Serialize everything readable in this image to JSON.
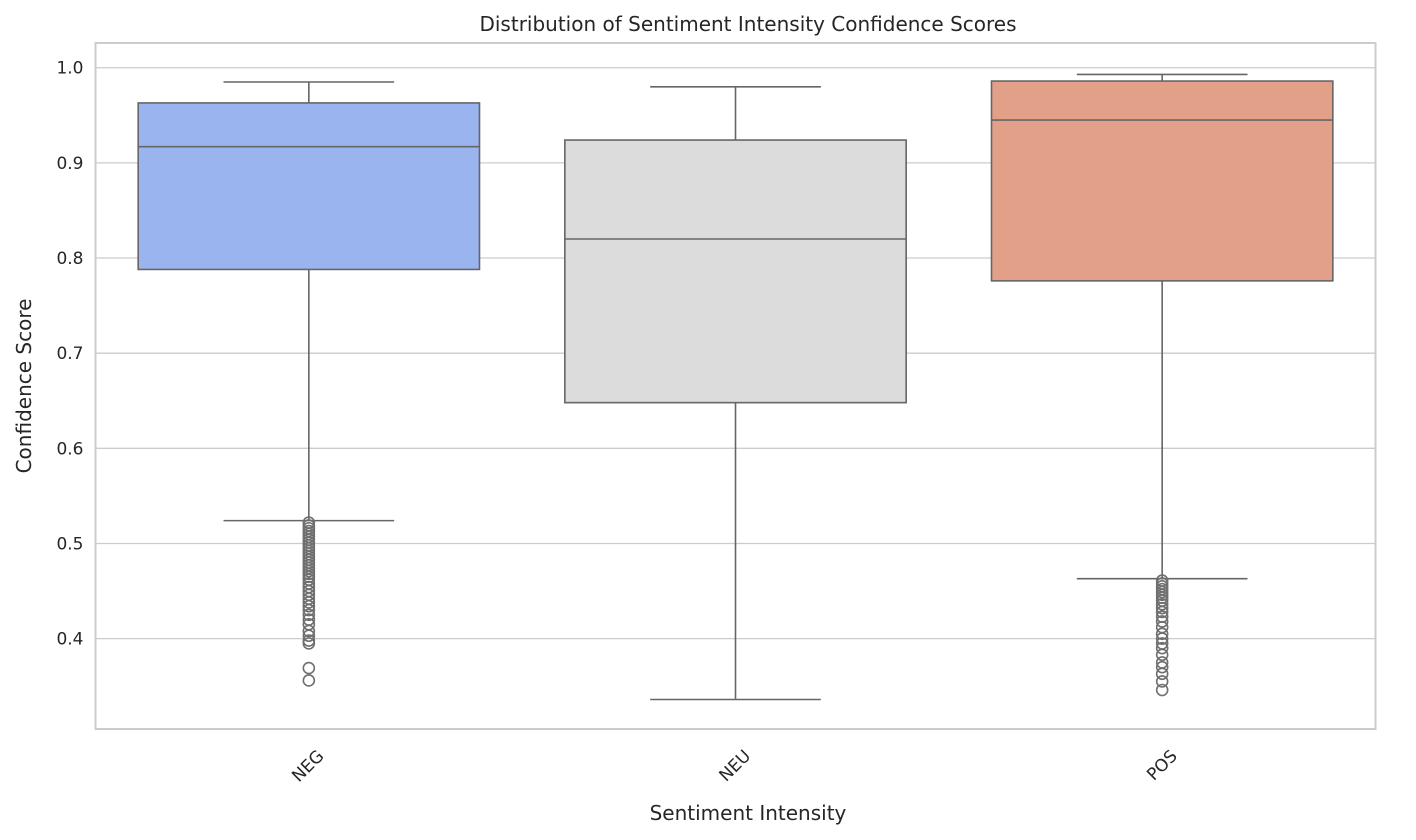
{
  "chart_data": {
    "type": "box",
    "title": "Distribution of Sentiment Intensity Confidence Scores",
    "xlabel": "Sentiment Intensity",
    "ylabel": "Confidence Score",
    "ylim": [
      0.305,
      1.026
    ],
    "yticks": [
      0.4,
      0.5,
      0.6,
      0.7,
      0.8,
      0.9,
      1.0
    ],
    "ytick_labels": [
      "0.4",
      "0.5",
      "0.6",
      "0.7",
      "0.8",
      "0.9",
      "1.0"
    ],
    "grid": "horizontal",
    "categories": [
      "NEG",
      "NEU",
      "POS"
    ],
    "series": [
      {
        "category": "NEG",
        "color": "#9ab4f0",
        "whisker_low": 0.524,
        "q1": 0.788,
        "median": 0.917,
        "q3": 0.963,
        "whisker_high": 0.985,
        "outliers": [
          0.522,
          0.519,
          0.516,
          0.513,
          0.51,
          0.507,
          0.504,
          0.501,
          0.498,
          0.495,
          0.492,
          0.489,
          0.486,
          0.483,
          0.48,
          0.477,
          0.474,
          0.471,
          0.468,
          0.465,
          0.462,
          0.458,
          0.454,
          0.45,
          0.446,
          0.442,
          0.438,
          0.434,
          0.43,
          0.425,
          0.42,
          0.415,
          0.408,
          0.403,
          0.398,
          0.395,
          0.369,
          0.356
        ]
      },
      {
        "category": "NEU",
        "color": "#dcdcdc",
        "whisker_low": 0.336,
        "q1": 0.648,
        "median": 0.82,
        "q3": 0.924,
        "whisker_high": 0.98,
        "outliers": []
      },
      {
        "category": "POS",
        "color": "#e3a089",
        "whisker_low": 0.463,
        "q1": 0.776,
        "median": 0.945,
        "q3": 0.986,
        "whisker_high": 0.993,
        "outliers": [
          0.461,
          0.458,
          0.455,
          0.452,
          0.449,
          0.446,
          0.443,
          0.44,
          0.436,
          0.432,
          0.428,
          0.423,
          0.418,
          0.412,
          0.405,
          0.4,
          0.395,
          0.39,
          0.383,
          0.375,
          0.37,
          0.363,
          0.355,
          0.346
        ]
      }
    ]
  }
}
